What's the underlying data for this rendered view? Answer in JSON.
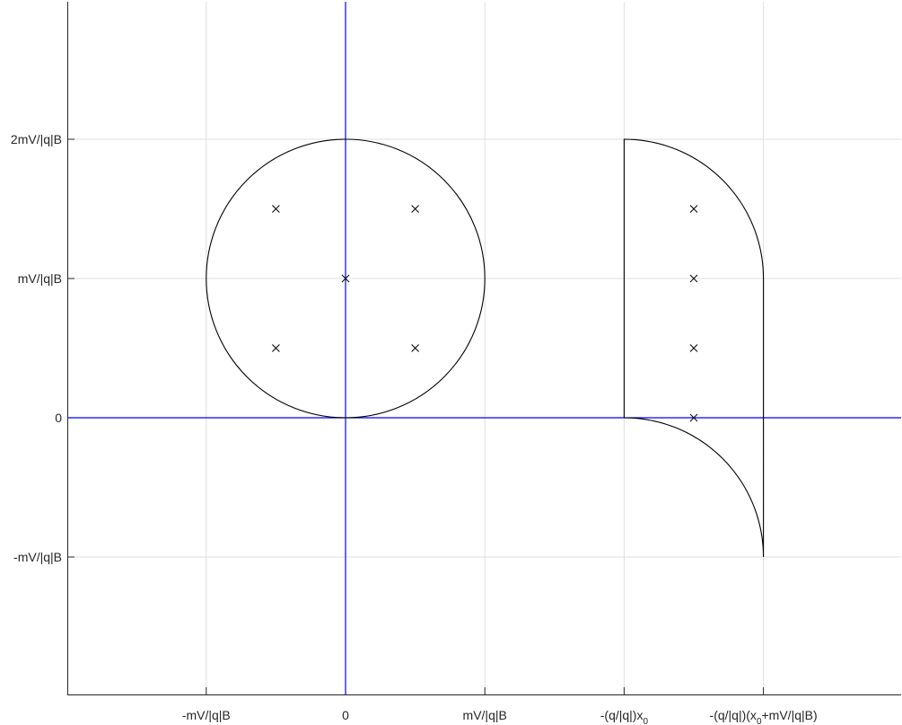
{
  "chart_data": {
    "type": "diagram-plot",
    "title": "",
    "xlabel": "",
    "ylabel": "",
    "grid": true,
    "xlim": [
      -1.99,
      4.0
    ],
    "ylim": [
      -2.0,
      3.0
    ],
    "x_ticks": [
      {
        "value": -1,
        "label": "-mV/|q|B"
      },
      {
        "value": 0,
        "label": "0"
      },
      {
        "value": 1,
        "label": "mV/|q|B"
      },
      {
        "value": 2,
        "label": "-(q/|q|)x",
        "sub": "0"
      },
      {
        "value": 3,
        "label": "-(q/|q|)(x",
        "sub": "0",
        "suffix": "+mV/|q|B)"
      }
    ],
    "y_ticks": [
      {
        "value": 2,
        "label": "2mV/|q|B"
      },
      {
        "value": 1,
        "label": "mV/|q|B"
      },
      {
        "value": 0,
        "label": "0"
      },
      {
        "value": -1,
        "label": "-mV/|q|B"
      }
    ],
    "axes_color": "#0000ff",
    "curve_color": "#000000",
    "grid_color": "#dfdfdf",
    "circle": {
      "center": [
        0,
        1
      ],
      "radius": 1
    },
    "region_boundary": [
      {
        "type": "line",
        "from": [
          2,
          0
        ],
        "to": [
          2,
          2
        ]
      },
      {
        "type": "arc",
        "center": [
          2,
          1
        ],
        "radius": 1,
        "start_deg": 90,
        "end_deg": 0
      },
      {
        "type": "line",
        "from": [
          3,
          1
        ],
        "to": [
          3,
          -1
        ]
      },
      {
        "type": "arc",
        "center": [
          2,
          -1
        ],
        "radius": 1,
        "start_deg": 0,
        "end_deg": 90
      }
    ],
    "markers": {
      "symbol": "x",
      "points": [
        [
          -0.5,
          1.5
        ],
        [
          0.5,
          1.5
        ],
        [
          0,
          1
        ],
        [
          -0.5,
          0.5
        ],
        [
          0.5,
          0.5
        ],
        [
          2.5,
          1.5
        ],
        [
          2.5,
          1
        ],
        [
          2.5,
          0.5
        ],
        [
          2.5,
          0
        ]
      ]
    }
  }
}
